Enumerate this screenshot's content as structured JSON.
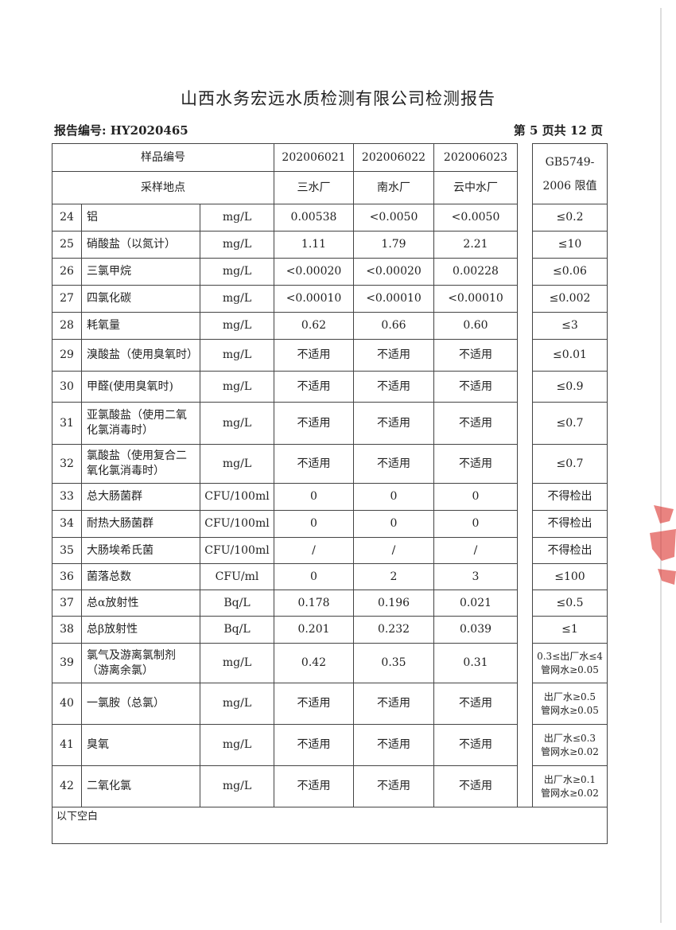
{
  "title": "山西水务宏远水质检测有限公司检测报告",
  "report_no": "报告编号: HY2020465",
  "page_info": "第 5 页共 12 页",
  "header": {
    "sample_no_label": "样品编号",
    "location_label": "采样地点",
    "samples": [
      "202006021",
      "202006022",
      "202006023"
    ],
    "locations": [
      "三水厂",
      "南水厂",
      "云中水厂"
    ],
    "limit_label_1": "GB5749-",
    "limit_label_2": "2006 限值"
  },
  "rows": [
    {
      "no": "24",
      "name": "铝",
      "unit": "mg/L",
      "v": [
        "0.00538",
        "<0.0050",
        "<0.0050"
      ],
      "limit": "≤0.2"
    },
    {
      "no": "25",
      "name": "硝酸盐（以氮计）",
      "unit": "mg/L",
      "v": [
        "1.11",
        "1.79",
        "2.21"
      ],
      "limit": "≤10"
    },
    {
      "no": "26",
      "name": "三氯甲烷",
      "unit": "mg/L",
      "v": [
        "<0.00020",
        "<0.00020",
        "0.00228"
      ],
      "limit": "≤0.06"
    },
    {
      "no": "27",
      "name": "四氯化碳",
      "unit": "mg/L",
      "v": [
        "<0.00010",
        "<0.00010",
        "<0.00010"
      ],
      "limit": "≤0.002"
    },
    {
      "no": "28",
      "name": "耗氧量",
      "unit": "mg/L",
      "v": [
        "0.62",
        "0.66",
        "0.60"
      ],
      "limit": "≤3"
    },
    {
      "no": "29",
      "name": "溴酸盐（使用臭氧时）",
      "unit": "mg/L",
      "v": [
        "不适用",
        "不适用",
        "不适用"
      ],
      "limit": "≤0.01"
    },
    {
      "no": "30",
      "name": "甲醛(使用臭氧时)",
      "unit": "mg/L",
      "v": [
        "不适用",
        "不适用",
        "不适用"
      ],
      "limit": "≤0.9"
    },
    {
      "no": "31",
      "name": "亚氯酸盐（使用二氧化氯消毒时）",
      "unit": "mg/L",
      "v": [
        "不适用",
        "不适用",
        "不适用"
      ],
      "limit": "≤0.7"
    },
    {
      "no": "32",
      "name": "氯酸盐（使用复合二氧化氯消毒时）",
      "unit": "mg/L",
      "v": [
        "不适用",
        "不适用",
        "不适用"
      ],
      "limit": "≤0.7"
    },
    {
      "no": "33",
      "name": "总大肠菌群",
      "unit": "CFU/100ml",
      "v": [
        "0",
        "0",
        "0"
      ],
      "limit": "不得检出"
    },
    {
      "no": "34",
      "name": "耐热大肠菌群",
      "unit": "CFU/100ml",
      "v": [
        "0",
        "0",
        "0"
      ],
      "limit": "不得检出"
    },
    {
      "no": "35",
      "name": "大肠埃希氏菌",
      "unit": "CFU/100ml",
      "v": [
        "/",
        "/",
        "/"
      ],
      "limit": "不得检出"
    },
    {
      "no": "36",
      "name": "菌落总数",
      "unit": "CFU/ml",
      "v": [
        "0",
        "2",
        "3"
      ],
      "limit": "≤100"
    },
    {
      "no": "37",
      "name": "总α放射性",
      "unit": "Bq/L",
      "v": [
        "0.178",
        "0.196",
        "0.021"
      ],
      "limit": "≤0.5"
    },
    {
      "no": "38",
      "name": "总β放射性",
      "unit": "Bq/L",
      "v": [
        "0.201",
        "0.232",
        "0.039"
      ],
      "limit": "≤1"
    },
    {
      "no": "39",
      "name": "氯气及游离氯制剂（游离余氯）",
      "unit": "mg/L",
      "v": [
        "0.42",
        "0.35",
        "0.31"
      ],
      "limit": "0.3≤出厂水≤4",
      "limit2": "管网水≥0.05"
    },
    {
      "no": "40",
      "name": "一氯胺（总氯）",
      "unit": "mg/L",
      "v": [
        "不适用",
        "不适用",
        "不适用"
      ],
      "limit": "出厂水≥0.5",
      "limit2": "管网水≥0.05"
    },
    {
      "no": "41",
      "name": "臭氧",
      "unit": "mg/L",
      "v": [
        "不适用",
        "不适用",
        "不适用"
      ],
      "limit": "出厂水≤0.3",
      "limit2": "管网水≥0.02"
    },
    {
      "no": "42",
      "name": "二氧化氯",
      "unit": "mg/L",
      "v": [
        "不适用",
        "不适用",
        "不适用"
      ],
      "limit": "出厂水≥0.1",
      "limit2": "管网水≥0.02"
    }
  ],
  "footer_note": "以下空白",
  "stamp_color": "#d9302c"
}
